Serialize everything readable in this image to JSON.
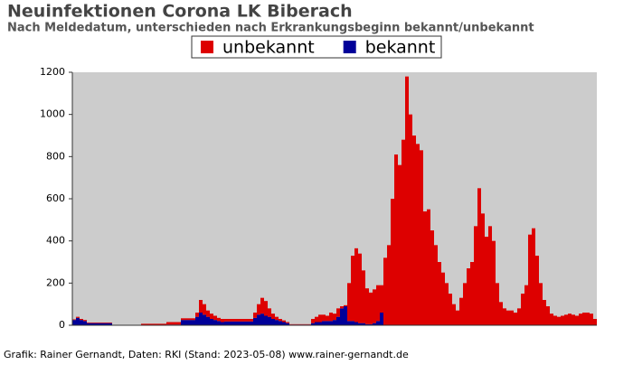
{
  "chart_data": {
    "type": "bar",
    "stacked": true,
    "title": "Neuinfektionen Corona LK Biberach",
    "subtitle": "Nach Meldedatum, unterschieden nach Erkrankungsbeginn bekannt/unbekannt",
    "footer": "Grafik: Rainer Gernandt, Daten: RKI (Stand: 2023-05-08) www.rainer-gernandt.de",
    "ylim": [
      0,
      1200
    ],
    "yticks": [
      0,
      200,
      400,
      600,
      800,
      1000,
      1200
    ],
    "grid": false,
    "categories": [
      null,
      null,
      null,
      null,
      null,
      null,
      null,
      null,
      null,
      null,
      null,
      null,
      null,
      null,
      null,
      null,
      null,
      null,
      null,
      null,
      null,
      null,
      null,
      null,
      null,
      null,
      null,
      null,
      null,
      null,
      null,
      null,
      null,
      null,
      null,
      null,
      null,
      null,
      null,
      null,
      null,
      null,
      null,
      null,
      null,
      null,
      null,
      null,
      null,
      null,
      null,
      null,
      null,
      null,
      null,
      null,
      null,
      null,
      null,
      null,
      null,
      null,
      null,
      null,
      null,
      null,
      null,
      null,
      null,
      null,
      null,
      null,
      null,
      null,
      null,
      null,
      null,
      null,
      null,
      null,
      null,
      null,
      null,
      null,
      null,
      null,
      null,
      null,
      null,
      null,
      null,
      null,
      null,
      null,
      null,
      null,
      null,
      null,
      null,
      null,
      null,
      null,
      null,
      null,
      null,
      null,
      null,
      null,
      null,
      null,
      null,
      null,
      null,
      null,
      null,
      null,
      null,
      null,
      null,
      null,
      null,
      null,
      null,
      null,
      null,
      null,
      null,
      null,
      null,
      null,
      null,
      null,
      null,
      null,
      null,
      null,
      null,
      null,
      null,
      null,
      null,
      null,
      null,
      null,
      null
    ],
    "series": [
      {
        "name": "unbekannt",
        "color": "#dd0000",
        "values": [
          3,
          5,
          5,
          5,
          3,
          3,
          3,
          3,
          3,
          3,
          3,
          2,
          2,
          2,
          2,
          2,
          2,
          2,
          2,
          5,
          5,
          5,
          5,
          5,
          5,
          5,
          12,
          12,
          12,
          12,
          8,
          8,
          8,
          8,
          20,
          60,
          50,
          30,
          25,
          20,
          15,
          15,
          12,
          12,
          12,
          12,
          12,
          12,
          12,
          12,
          25,
          50,
          75,
          70,
          40,
          25,
          15,
          10,
          8,
          5,
          2,
          2,
          2,
          2,
          2,
          2,
          20,
          25,
          35,
          30,
          25,
          40,
          30,
          40,
          10,
          5,
          180,
          310,
          350,
          330,
          250,
          170,
          150,
          160,
          170,
          130,
          320,
          380,
          600,
          810,
          760,
          880,
          1180,
          1000,
          900,
          860,
          830,
          540,
          550,
          450,
          380,
          300,
          250,
          200,
          150,
          100,
          70,
          130,
          200,
          270,
          300,
          470,
          650,
          530,
          420,
          470,
          400,
          200,
          110,
          80,
          70,
          70,
          60,
          80,
          150,
          190,
          430,
          460,
          330,
          200,
          120,
          90,
          55,
          45,
          40,
          45,
          50,
          55,
          50,
          45,
          55,
          60,
          60,
          55,
          30
        ]
      },
      {
        "name": "bekannt",
        "color": "#000099",
        "values": [
          25,
          35,
          25,
          20,
          10,
          10,
          10,
          10,
          10,
          10,
          10,
          0,
          0,
          0,
          0,
          0,
          0,
          0,
          0,
          2,
          2,
          2,
          2,
          2,
          2,
          2,
          3,
          3,
          3,
          3,
          25,
          25,
          25,
          25,
          40,
          60,
          50,
          40,
          30,
          25,
          20,
          15,
          18,
          18,
          18,
          18,
          18,
          18,
          18,
          18,
          35,
          50,
          55,
          45,
          40,
          30,
          25,
          20,
          15,
          10,
          3,
          3,
          3,
          3,
          3,
          3,
          10,
          15,
          15,
          20,
          20,
          20,
          25,
          40,
          80,
          90,
          20,
          20,
          15,
          10,
          10,
          5,
          5,
          10,
          20,
          60,
          0,
          0,
          0,
          0,
          0,
          0,
          0,
          0,
          0,
          0,
          0,
          0,
          0,
          0,
          0,
          0,
          0,
          0,
          0,
          0,
          0,
          0,
          0,
          0,
          0,
          0,
          0,
          0,
          0,
          0,
          0,
          0,
          0,
          0,
          0,
          0,
          0,
          0,
          0,
          0,
          0,
          0,
          0,
          0,
          0,
          0,
          0,
          0,
          0,
          0,
          0,
          0,
          0,
          0,
          0,
          0,
          0,
          0,
          0
        ]
      }
    ]
  }
}
